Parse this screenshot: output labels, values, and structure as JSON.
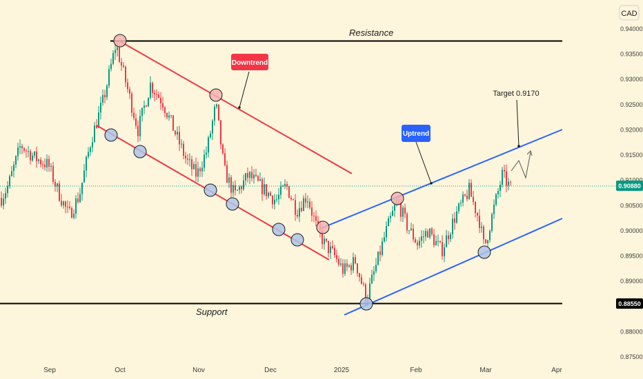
{
  "chart_data": {
    "type": "candlestick",
    "currency_label": "CAD",
    "y_axis": {
      "ticks": [
        "0.94000",
        "0.93500",
        "0.93000",
        "0.92500",
        "0.92000",
        "0.91500",
        "0.91000",
        "0.90500",
        "0.90000",
        "0.89500",
        "0.89000",
        "0.88500",
        "0.88000",
        "0.87500"
      ],
      "ylim": [
        0.8745,
        0.941
      ]
    },
    "x_axis": {
      "ticks": [
        "Sep",
        "Oct",
        "Nov",
        "Dec",
        "2025",
        "Feb",
        "Mar",
        "Apr"
      ]
    },
    "current_price": {
      "label": "0.90880",
      "value": 0.9088,
      "color": "#089981"
    },
    "levels": [
      {
        "name": "Resistance",
        "value": 0.9375,
        "tag": ""
      },
      {
        "name": "Support",
        "value": 0.8855,
        "tag": "0.88550"
      }
    ],
    "annotations": {
      "downtrend": {
        "text": "Downtrend",
        "color": "#f23645"
      },
      "uptrend": {
        "text": "Uptrend",
        "color": "#2962ff"
      },
      "target": {
        "text": "Target 0.9170"
      }
    },
    "colors": {
      "background": "#fdf6dc",
      "up_candle": "#089981",
      "down_candle": "#f23645",
      "downtrend_channel": "#f23645",
      "uptrend_channel": "#2962ff",
      "level_line": "#000000",
      "touch_blue": "#aec3e8",
      "touch_red": "#f4b3b3"
    }
  }
}
